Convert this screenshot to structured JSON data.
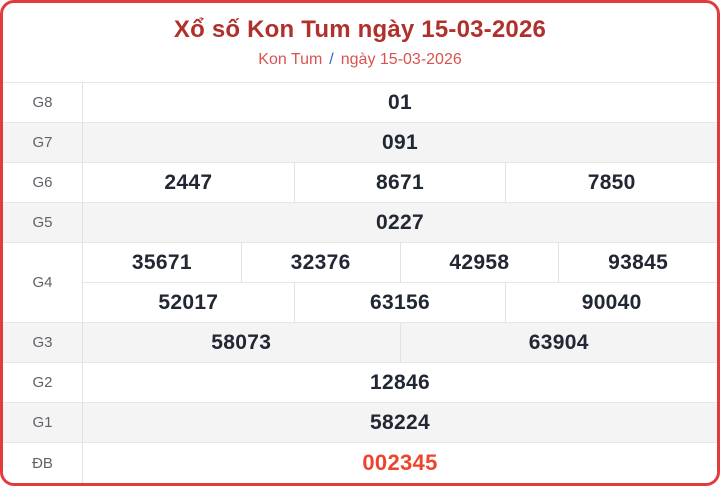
{
  "header": {
    "title": "Xổ số Kon Tum ngày 15-03-2026",
    "subtitle_left": "Kon Tum",
    "subtitle_separator": "/",
    "subtitle_right": "ngày 15-03-2026"
  },
  "table": {
    "rows": [
      {
        "label": "G8",
        "groups": [
          [
            "01"
          ]
        ]
      },
      {
        "label": "G7",
        "groups": [
          [
            "091"
          ]
        ]
      },
      {
        "label": "G6",
        "groups": [
          [
            "2447",
            "8671",
            "7850"
          ]
        ]
      },
      {
        "label": "G5",
        "groups": [
          [
            "0227"
          ]
        ]
      },
      {
        "label": "G4",
        "groups": [
          [
            "35671",
            "32376",
            "42958",
            "93845"
          ],
          [
            "52017",
            "63156",
            "90040"
          ]
        ]
      },
      {
        "label": "G3",
        "groups": [
          [
            "58073",
            "63904"
          ]
        ]
      },
      {
        "label": "G2",
        "groups": [
          [
            "12846"
          ]
        ]
      },
      {
        "label": "G1",
        "groups": [
          [
            "58224"
          ]
        ]
      },
      {
        "label": "ĐB",
        "groups": [
          [
            "002345"
          ]
        ],
        "special": true
      }
    ]
  },
  "colors": {
    "card_border": "#e23b3b",
    "title": "#b0302c",
    "subtitle": "#d9534f",
    "subtitle_separator": "#3f5fd0",
    "label_text": "#5f6368",
    "number_text": "#212733",
    "special_number": "#ee442d",
    "alt_row_background": "#f4f4f5",
    "grid_line": "#e6e6e6"
  }
}
